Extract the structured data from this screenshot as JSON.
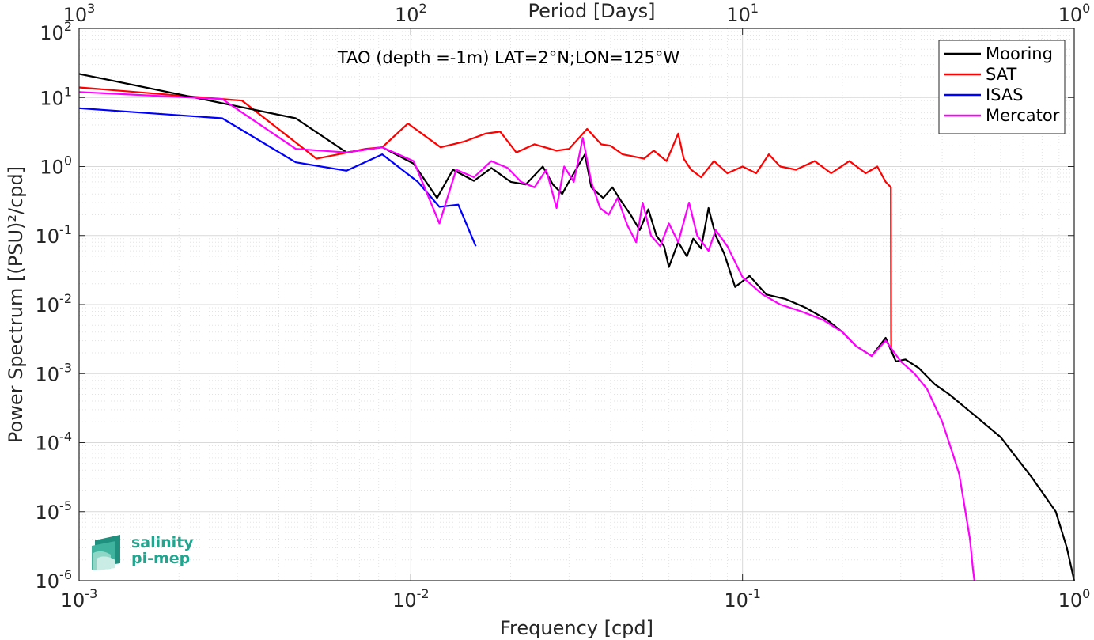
{
  "chart_data": {
    "type": "line",
    "title": "TAO (depth =-1m) LAT=2°N;LON=125°W",
    "xlabel": "Frequency [cpd]",
    "ylabel": "Power Spectrum [(PSU)²/cpd]",
    "x2label": "Period [Days]",
    "xscale": "log",
    "yscale": "log",
    "xlim": [
      0.001,
      1
    ],
    "ylim": [
      1e-06,
      100
    ],
    "grid": true,
    "legend": "top-right",
    "x_ticks": [
      "10",
      "10",
      "10",
      "10"
    ],
    "x_tick_exps": [
      "-3",
      "-2",
      "-1",
      "0"
    ],
    "top_ticks": [
      "10",
      "10",
      "10",
      "10"
    ],
    "top_tick_exps": [
      "3",
      "2",
      "1",
      "0"
    ],
    "y_ticks": [
      "10",
      "10",
      "10",
      "10",
      "10",
      "10",
      "10",
      "10",
      "10"
    ],
    "y_tick_exps": [
      "-6",
      "-5",
      "-4",
      "-3",
      "-2",
      "-1",
      "0",
      "1",
      "2"
    ],
    "series": [
      {
        "name": "Mooring",
        "color": "#000000",
        "x": [
          0.001,
          0.0045,
          0.0064,
          0.0082,
          0.0102,
          0.012,
          0.0134,
          0.0155,
          0.0175,
          0.02,
          0.0222,
          0.025,
          0.0268,
          0.0286,
          0.0305,
          0.0335,
          0.035,
          0.038,
          0.0405,
          0.043,
          0.046,
          0.049,
          0.052,
          0.055,
          0.058,
          0.06,
          0.064,
          0.068,
          0.071,
          0.075,
          0.079,
          0.083,
          0.088,
          0.095,
          0.105,
          0.118,
          0.135,
          0.155,
          0.18,
          0.2,
          0.22,
          0.245,
          0.27,
          0.29,
          0.31,
          0.34,
          0.38,
          0.42,
          0.5,
          0.6,
          0.75,
          0.88,
          0.95,
          1.0
        ],
        "values": [
          22,
          5,
          1.6,
          1.9,
          1.1,
          0.35,
          0.9,
          0.62,
          0.95,
          0.6,
          0.55,
          1.0,
          0.55,
          0.4,
          0.7,
          1.5,
          0.5,
          0.35,
          0.5,
          0.32,
          0.2,
          0.12,
          0.24,
          0.1,
          0.07,
          0.035,
          0.08,
          0.05,
          0.09,
          0.065,
          0.25,
          0.1,
          0.055,
          0.018,
          0.026,
          0.014,
          0.012,
          0.009,
          0.006,
          0.004,
          0.0025,
          0.0018,
          0.0033,
          0.0015,
          0.0016,
          0.0012,
          0.0007,
          0.0005,
          0.00025,
          0.00012,
          3e-05,
          1e-05,
          3e-06,
          1e-06
        ]
      },
      {
        "name": "SAT",
        "color": "#ff0000",
        "x": [
          0.001,
          0.0031,
          0.0052,
          0.0073,
          0.0082,
          0.0098,
          0.0123,
          0.0145,
          0.0168,
          0.0186,
          0.0208,
          0.0236,
          0.0275,
          0.03,
          0.034,
          0.0375,
          0.04,
          0.0435,
          0.047,
          0.0505,
          0.054,
          0.059,
          0.064,
          0.0665,
          0.07,
          0.075,
          0.082,
          0.09,
          0.1,
          0.11,
          0.12,
          0.13,
          0.145,
          0.165,
          0.185,
          0.21,
          0.235,
          0.255,
          0.27,
          0.28,
          0.2805,
          0.2808
        ],
        "values": [
          14,
          9,
          1.3,
          1.8,
          1.9,
          4.2,
          1.9,
          2.3,
          3.0,
          3.2,
          1.6,
          2.1,
          1.7,
          1.8,
          3.5,
          2.1,
          2.0,
          1.5,
          1.4,
          1.3,
          1.7,
          1.2,
          3.0,
          1.3,
          0.9,
          0.7,
          1.2,
          0.8,
          1.0,
          0.8,
          1.5,
          1.0,
          0.9,
          1.2,
          0.8,
          1.2,
          0.8,
          1.0,
          0.6,
          0.5,
          0.004,
          0.002
        ]
      },
      {
        "name": "ISAS",
        "color": "#0000ff",
        "x": [
          0.001,
          0.0027,
          0.0045,
          0.0064,
          0.0082,
          0.0105,
          0.0122,
          0.0139,
          0.0157
        ],
        "values": [
          7,
          5,
          1.15,
          0.87,
          1.5,
          0.6,
          0.26,
          0.28,
          0.07
        ]
      },
      {
        "name": "Mercator",
        "color": "#ff00ff",
        "x": [
          0.001,
          0.0027,
          0.0045,
          0.0064,
          0.0082,
          0.0102,
          0.0122,
          0.0137,
          0.0155,
          0.0175,
          0.0196,
          0.0215,
          0.0236,
          0.0256,
          0.0275,
          0.029,
          0.031,
          0.033,
          0.035,
          0.0372,
          0.0395,
          0.042,
          0.045,
          0.0478,
          0.05,
          0.053,
          0.0565,
          0.06,
          0.064,
          0.069,
          0.073,
          0.079,
          0.083,
          0.09,
          0.1,
          0.115,
          0.13,
          0.15,
          0.175,
          0.2,
          0.22,
          0.245,
          0.27,
          0.3,
          0.33,
          0.36,
          0.4,
          0.43,
          0.45,
          0.47,
          0.485,
          0.495,
          0.5
        ],
        "values": [
          12,
          9.5,
          1.8,
          1.6,
          1.9,
          1.2,
          0.15,
          0.9,
          0.7,
          1.2,
          0.95,
          0.6,
          0.5,
          0.9,
          0.25,
          1.0,
          0.6,
          2.6,
          0.6,
          0.25,
          0.2,
          0.35,
          0.14,
          0.08,
          0.3,
          0.1,
          0.07,
          0.15,
          0.08,
          0.3,
          0.1,
          0.06,
          0.12,
          0.07,
          0.025,
          0.014,
          0.01,
          0.008,
          0.006,
          0.004,
          0.0025,
          0.0018,
          0.003,
          0.0015,
          0.001,
          0.0006,
          0.0002,
          7e-05,
          3.5e-05,
          1e-05,
          4e-06,
          1.5e-06,
          1e-06
        ]
      }
    ]
  },
  "logo": {
    "line1": "salinity",
    "line2": "pi-mep"
  }
}
